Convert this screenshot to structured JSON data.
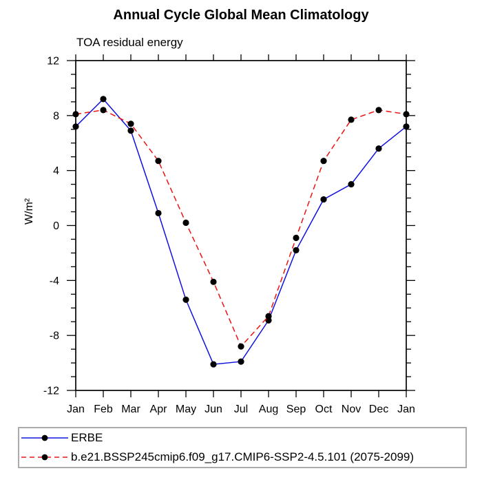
{
  "chart_data": {
    "type": "line",
    "title": "Annual Cycle Global Mean Climatology",
    "subtitle": "TOA residual energy",
    "ylabel": "W/m²",
    "xlabel": "",
    "x_categories": [
      "Jan",
      "Feb",
      "Mar",
      "Apr",
      "May",
      "Jun",
      "Jul",
      "Aug",
      "Sep",
      "Oct",
      "Nov",
      "Dec",
      "Jan"
    ],
    "ylim": [
      -12,
      12
    ],
    "y_major_ticks": [
      -12,
      -8,
      -4,
      0,
      4,
      8,
      12
    ],
    "y_minor_step": 1,
    "grid": "off",
    "legend_position": "bottom-boxed",
    "frame_color": "#000000",
    "marker_color": "#000000",
    "series": [
      {
        "name": "ERBE",
        "color": "#1010e0",
        "style": "solid",
        "marker": "filled-circle",
        "values": [
          7.2,
          9.2,
          6.9,
          0.9,
          -5.4,
          -10.1,
          -9.9,
          -6.9,
          -1.8,
          1.9,
          3.0,
          5.6,
          7.2
        ]
      },
      {
        "name": "b.e21.BSSP245cmip6.f09_g17.CMIP6-SSP2-4.5.101 (2075-2099)",
        "color": "#ee1111",
        "style": "dashed",
        "marker": "filled-circle",
        "values": [
          8.1,
          8.4,
          7.4,
          4.7,
          0.2,
          -4.1,
          -8.8,
          -6.6,
          -0.9,
          4.7,
          7.7,
          8.4,
          8.1
        ]
      }
    ]
  }
}
